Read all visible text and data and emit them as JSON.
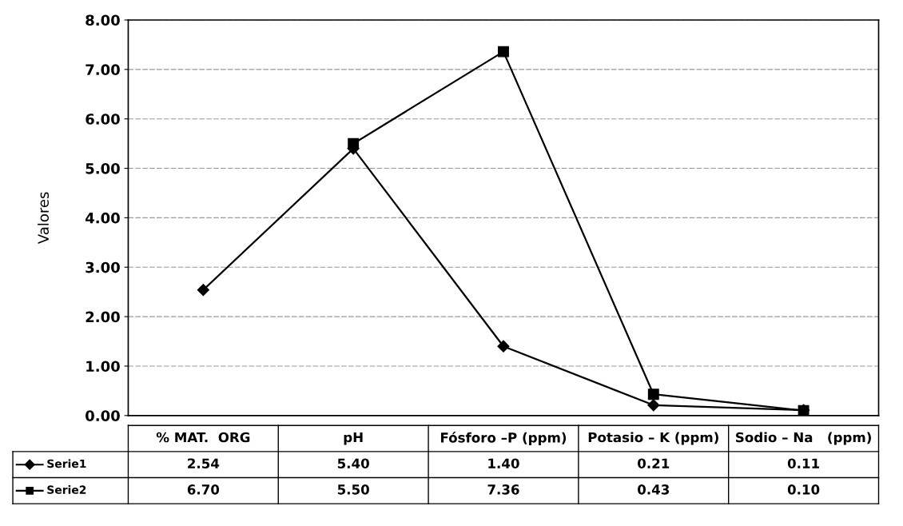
{
  "chart_data": {
    "type": "line",
    "ylabel": "Valores",
    "categories": [
      "% MAT.  ORG",
      "pH",
      "Fósforo –P (ppm)",
      "Potasio – K (ppm)",
      "Sodio – Na   (ppm)"
    ],
    "series": [
      {
        "name": "Serie1",
        "color": "#000000",
        "marker": "diamond",
        "values": [
          2.54,
          5.4,
          1.4,
          0.21,
          0.11
        ],
        "value_labels": [
          "2.54",
          "5.40",
          "1.40",
          "0.21",
          "0.11"
        ]
      },
      {
        "name": "Serie2",
        "color": "#000000",
        "marker": "square",
        "values": [
          null,
          5.5,
          7.36,
          0.43,
          0.1
        ],
        "value_labels": [
          "6.70",
          "5.50",
          "7.36",
          "0.43",
          "0.10"
        ]
      }
    ],
    "ylim": [
      0,
      8
    ],
    "yticks": [
      {
        "value": 0,
        "label": "0.00"
      },
      {
        "value": 1,
        "label": "1.00"
      },
      {
        "value": 2,
        "label": "2.00"
      },
      {
        "value": 3,
        "label": "3.00"
      },
      {
        "value": 4,
        "label": "4.00"
      },
      {
        "value": 5,
        "label": "5.00"
      },
      {
        "value": 6,
        "label": "6.00"
      },
      {
        "value": 7,
        "label": "7.00"
      },
      {
        "value": 8,
        "label": "8.00"
      }
    ],
    "grid": "y",
    "legend": "bottom",
    "line_style": "solid"
  }
}
